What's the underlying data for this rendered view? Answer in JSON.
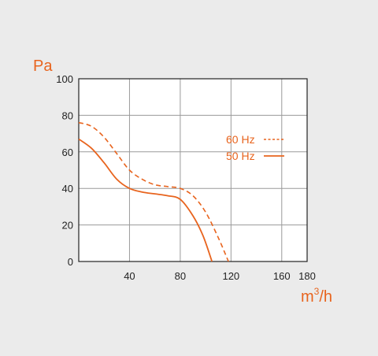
{
  "chart_data": {
    "type": "line",
    "xlabel": "m",
    "xlabel_sup": "3",
    "xlabel_suffix": "/h",
    "ylabel": "Pa",
    "xlim": [
      0,
      180
    ],
    "ylim": [
      0,
      100
    ],
    "x_ticks": [
      40,
      80,
      120,
      160,
      180
    ],
    "y_ticks": [
      0,
      20,
      40,
      60,
      80,
      100
    ],
    "x_tick_labels": [
      "40",
      "80",
      "120",
      "160",
      "180"
    ],
    "y_tick_labels": [
      "0",
      "20",
      "40",
      "60",
      "80",
      "100"
    ],
    "grid": true,
    "legend_position": "right",
    "series": [
      {
        "name": "60 Hz",
        "style": "dashed",
        "color": "#e8641e",
        "x": [
          0,
          10,
          20,
          30,
          40,
          50,
          60,
          70,
          80,
          90,
          100,
          110,
          118
        ],
        "y": [
          76,
          74,
          68,
          59,
          50,
          45,
          42,
          41,
          40,
          36,
          27,
          13,
          0
        ]
      },
      {
        "name": "50 Hz",
        "style": "solid",
        "color": "#e8641e",
        "x": [
          0,
          10,
          20,
          30,
          40,
          50,
          60,
          70,
          80,
          90,
          98,
          105
        ],
        "y": [
          67,
          62,
          54,
          45,
          40,
          38,
          37,
          36,
          34,
          25,
          14,
          0
        ]
      }
    ]
  }
}
